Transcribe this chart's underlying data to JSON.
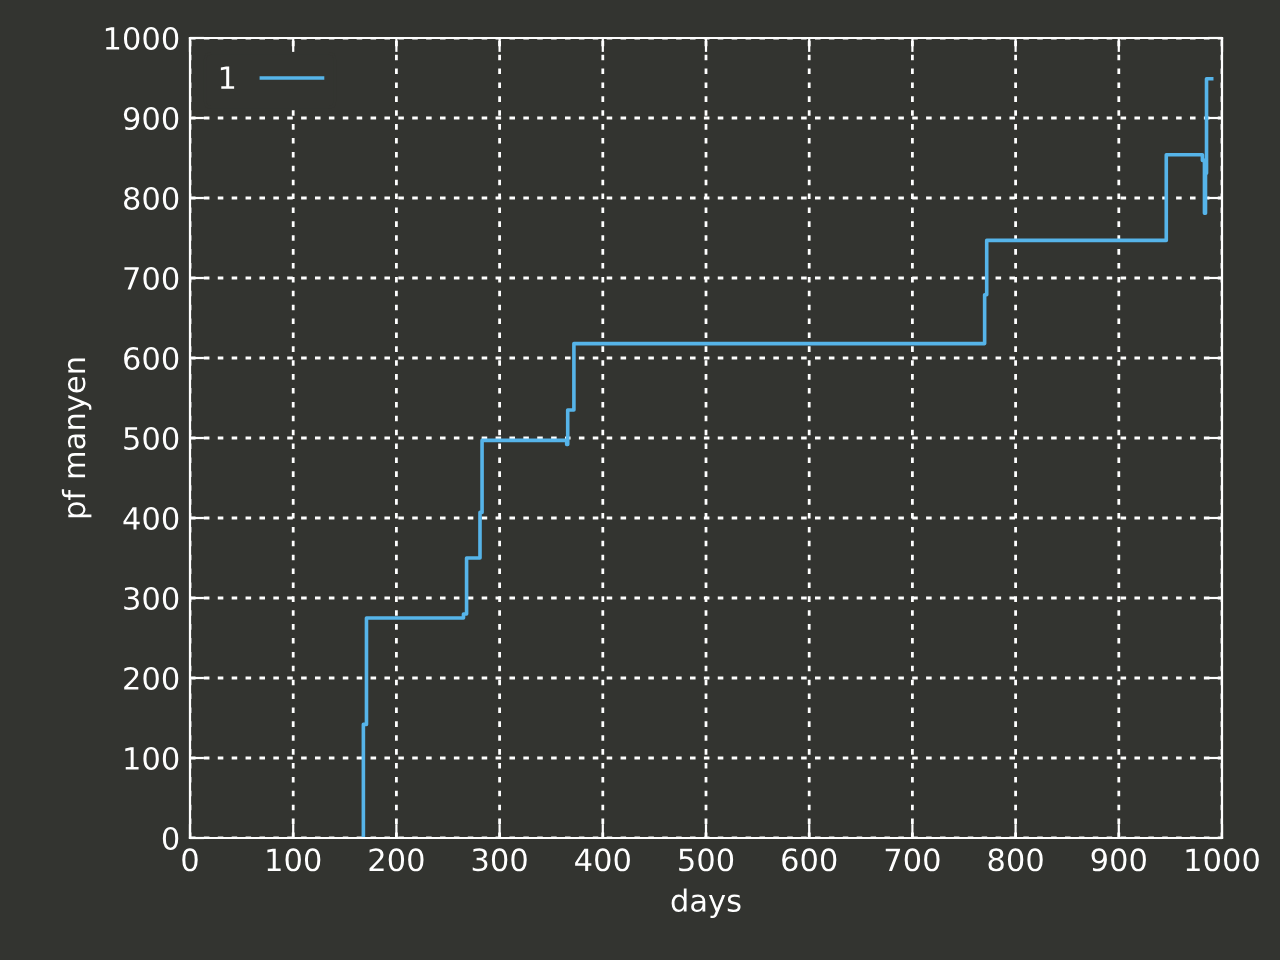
{
  "chart_data": {
    "type": "line",
    "xlabel": "days",
    "ylabel": "pf manyen",
    "series": [
      {
        "name": "1",
        "color": "#56b4e9",
        "x": [
          168,
          168,
          171,
          171,
          265,
          265,
          268,
          268,
          281,
          281,
          283,
          283,
          365,
          365,
          366,
          366,
          372,
          372,
          770,
          770,
          772,
          772,
          946,
          946,
          981,
          981,
          983,
          983,
          984,
          984,
          985,
          985,
          990
        ],
        "values": [
          0,
          142,
          142,
          275,
          275,
          280,
          280,
          350,
          350,
          407,
          407,
          497,
          497,
          492,
          492,
          535,
          535,
          618,
          618,
          679,
          679,
          747,
          747,
          854,
          854,
          847,
          847,
          781,
          781,
          831,
          831,
          949,
          949
        ]
      }
    ],
    "xlim": [
      0,
      1000
    ],
    "xticks": [
      0,
      100,
      200,
      300,
      400,
      500,
      600,
      700,
      800,
      900,
      1000
    ],
    "ylim": [
      0,
      1000
    ],
    "yticks": [
      0,
      100,
      200,
      300,
      400,
      500,
      600,
      700,
      800,
      900,
      1000
    ],
    "grid": true,
    "legend": "top left",
    "marker": "none",
    "line_style": "solid"
  }
}
